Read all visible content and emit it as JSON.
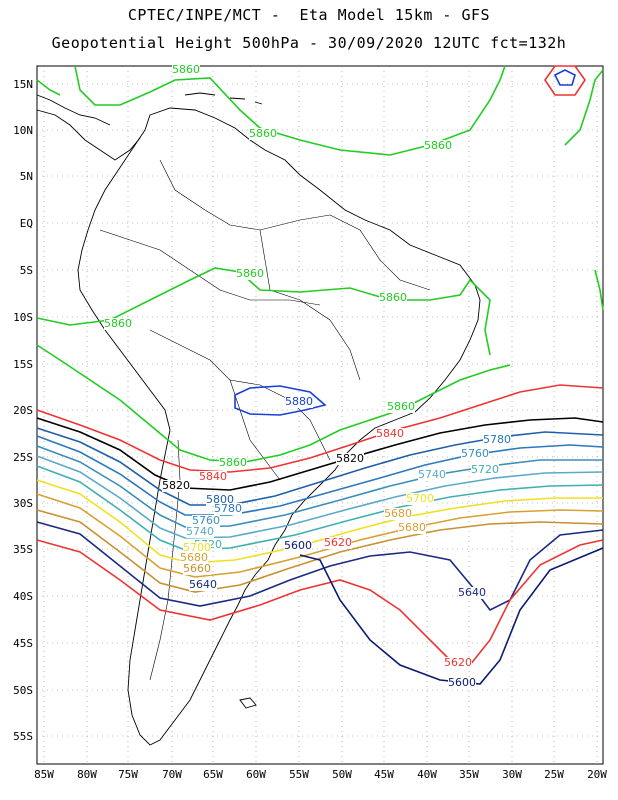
{
  "header": {
    "line1": "CPTEC/INPE/MCT -  Eta Model 15km - GFS",
    "line2": "Geopotential Height 500hPa - 30/09/2020 12UTC fct=132h"
  },
  "axes": {
    "lat_labels": [
      "15N",
      "10N",
      "5N",
      "EQ",
      "5S",
      "10S",
      "15S",
      "20S",
      "25S",
      "30S",
      "35S",
      "40S",
      "45S",
      "50S",
      "55S"
    ],
    "lon_labels": [
      "85W",
      "80W",
      "75W",
      "70W",
      "65W",
      "60W",
      "55W",
      "50W",
      "45W",
      "40W",
      "35W",
      "30W",
      "25W",
      "20W"
    ]
  },
  "colors": {
    "c5860": "#22cc22",
    "c5880": "#1a3fd6",
    "c5840": "#ee3333",
    "c5820": "#000000",
    "c5800": "#1f5fa8",
    "c5780": "#2a78c0",
    "c5760": "#3a8fb8",
    "c5740": "#5aaac8",
    "c5720": "#3fb0b0",
    "c5700": "#f0e020",
    "c5680": "#d8a030",
    "c5660": "#c89030",
    "c5640": "#1a2a80",
    "c5620": "#ee3333",
    "c5600": "#0a1a70",
    "coast": "#000000",
    "grid": "#888888"
  },
  "contour_labels": [
    {
      "text": "5860",
      "color": "c5860"
    },
    {
      "text": "5860",
      "color": "c5860"
    },
    {
      "text": "5860",
      "color": "c5860"
    },
    {
      "text": "5860",
      "color": "c5860"
    },
    {
      "text": "5860",
      "color": "c5860"
    },
    {
      "text": "5860",
      "color": "c5860"
    },
    {
      "text": "5860",
      "color": "c5860"
    },
    {
      "text": "5860",
      "color": "c5860"
    },
    {
      "text": "5880",
      "color": "c5880"
    },
    {
      "text": "5840",
      "color": "c5840"
    },
    {
      "text": "5840",
      "color": "c5840"
    },
    {
      "text": "5820",
      "color": "c5820"
    },
    {
      "text": "5820",
      "color": "c5820"
    },
    {
      "text": "5780",
      "color": "c5780"
    },
    {
      "text": "5760",
      "color": "c5760"
    },
    {
      "text": "5740",
      "color": "c5740"
    },
    {
      "text": "5720",
      "color": "c5720"
    },
    {
      "text": "5700",
      "color": "c5700"
    },
    {
      "text": "5680",
      "color": "c5680"
    },
    {
      "text": "5680",
      "color": "c5680"
    },
    {
      "text": "5800",
      "color": "c5800"
    },
    {
      "text": "5780",
      "color": "c5780"
    },
    {
      "text": "5760",
      "color": "c5760"
    },
    {
      "text": "5740",
      "color": "c5740"
    },
    {
      "text": "5720",
      "color": "c5720"
    },
    {
      "text": "5700",
      "color": "c5700"
    },
    {
      "text": "5680",
      "color": "c5680"
    },
    {
      "text": "5660",
      "color": "c5660"
    },
    {
      "text": "5640",
      "color": "c5640"
    },
    {
      "text": "5600",
      "color": "c5600"
    },
    {
      "text": "5620",
      "color": "c5620"
    },
    {
      "text": "5640",
      "color": "c5640"
    },
    {
      "text": "5620",
      "color": "c5620"
    },
    {
      "text": "5600",
      "color": "c5600"
    }
  ]
}
